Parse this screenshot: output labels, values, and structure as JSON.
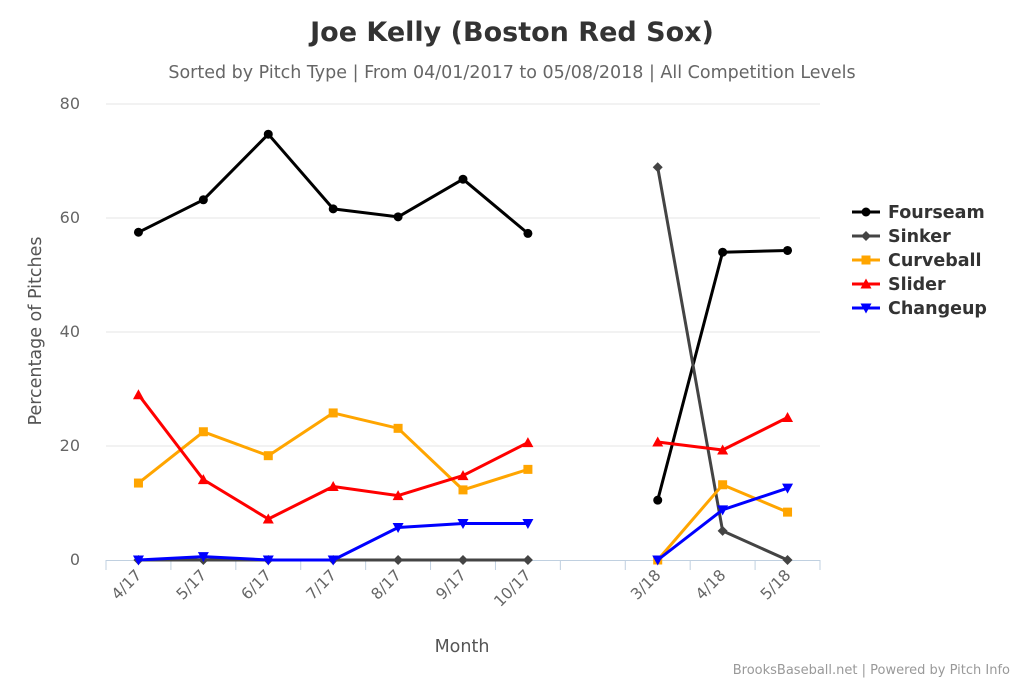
{
  "chart_data": {
    "type": "line",
    "title": "Joe Kelly (Boston Red Sox)",
    "subtitle": "Sorted by Pitch Type | From 04/01/2017 to 05/08/2018 | All Competition Levels",
    "xlabel": "Month",
    "ylabel": "Percentage of Pitches",
    "ylim": [
      0,
      80
    ],
    "yticks": [
      0,
      20,
      40,
      60,
      80
    ],
    "grid": true,
    "legend_position": "right",
    "categories": [
      "4/17",
      "5/17",
      "6/17",
      "7/17",
      "8/17",
      "9/17",
      "10/17",
      "",
      "3/18",
      "4/18",
      "5/18"
    ],
    "series": [
      {
        "name": "Fourseam",
        "color": "#000000",
        "marker": "circle",
        "values": [
          57.5,
          63.2,
          74.7,
          61.6,
          60.2,
          66.8,
          57.3,
          null,
          10.5,
          54.0,
          54.3
        ]
      },
      {
        "name": "Sinker",
        "color": "#444444",
        "marker": "diamond",
        "values": [
          0,
          0,
          0,
          0,
          0,
          0,
          0,
          null,
          68.9,
          5.1,
          0
        ]
      },
      {
        "name": "Curveball",
        "color": "#FFA500",
        "marker": "square",
        "values": [
          13.5,
          22.5,
          18.3,
          25.8,
          23.1,
          12.3,
          15.9,
          null,
          0,
          13.2,
          8.4
        ]
      },
      {
        "name": "Slider",
        "color": "#FF0000",
        "marker": "triangle",
        "values": [
          29.0,
          14.1,
          7.2,
          12.9,
          11.3,
          14.8,
          20.6,
          null,
          20.7,
          19.3,
          25.0
        ]
      },
      {
        "name": "Changeup",
        "color": "#0000FF",
        "marker": "triangle-down",
        "values": [
          0,
          0.6,
          0,
          0,
          5.7,
          6.4,
          6.4,
          null,
          0,
          8.8,
          12.6
        ]
      }
    ]
  },
  "credits": "BrooksBaseball.net | Powered by Pitch Info"
}
